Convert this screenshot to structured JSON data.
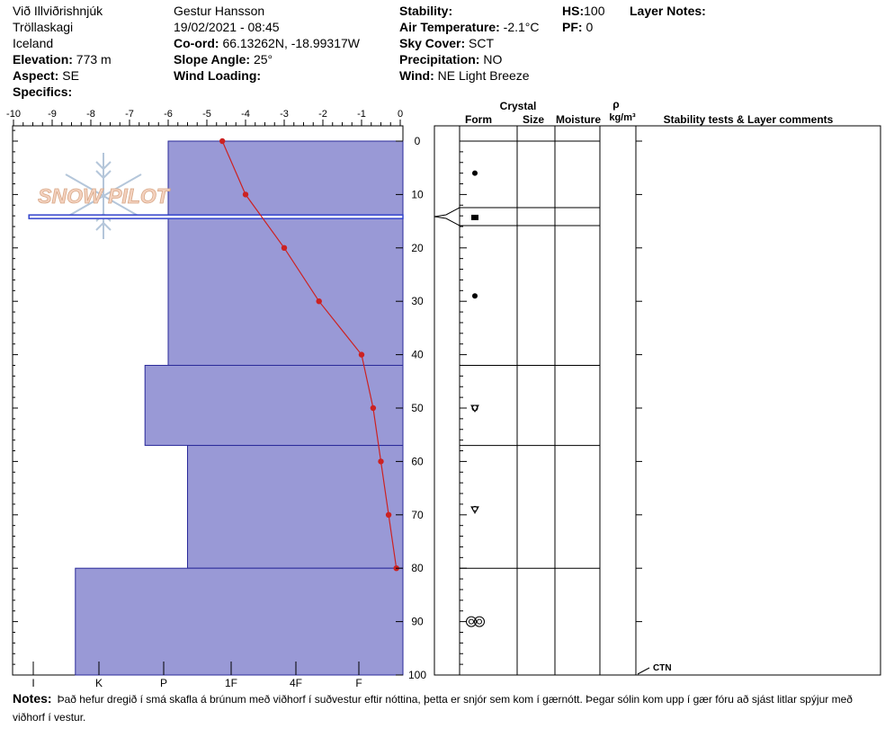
{
  "header": {
    "location": "Við Illviðrishnjúk",
    "region": "Tröllaskagi",
    "country": "Iceland",
    "elevation_label": "Elevation:",
    "elevation": "773 m",
    "aspect_label": "Aspect:",
    "aspect": "SE",
    "specifics_label": "Specifics:",
    "observer": "Gestur Hansson",
    "datetime": "19/02/2021 - 08:45",
    "coord_label": "Co-ord:",
    "coord": "66.13262N, -18.99317W",
    "slope_label": "Slope Angle:",
    "slope": "25°",
    "wind_loading_label": "Wind Loading:",
    "stability_label": "Stability:",
    "air_temp_label": "Air Temperature:",
    "air_temp": "-2.1°C",
    "sky_label": "Sky Cover:",
    "sky": "SCT",
    "precip_label": "Precipitation:",
    "precip": "NO",
    "wind_label": "Wind:",
    "wind": "NE Light Breeze",
    "hs_label": "HS:",
    "hs": "100",
    "pf_label": "PF:",
    "pf": "0",
    "layer_notes_label": "Layer Notes:"
  },
  "watermark": {
    "text": "SNOW PILOT"
  },
  "columns": {
    "crystal": "Crystal",
    "form": "Form",
    "size": "Size",
    "moisture": "Moisture",
    "rho": "ρ",
    "density_unit": "kg/m³",
    "stability": "Stability tests & Layer comments"
  },
  "stability_tests": [
    {
      "label": "CTN",
      "depth": 100
    }
  ],
  "notes": {
    "label": "Notes:",
    "text": "Það hefur dregið í smá skafla á brúnum með viðhorf í suðvestur eftir nóttina, þetta er snjór sem kom í gærnótt. Þegar sólin kom upp í gær fóru að sjást litlar spýjur með viðhorf í vestur."
  },
  "chart_data": {
    "type": "snow-profile",
    "temperature_axis": {
      "ticks": [
        "-10",
        "-9",
        "-8",
        "-7",
        "-6",
        "-5",
        "-4",
        "-3",
        "-2",
        "-1",
        "0"
      ],
      "range": [
        -10,
        0
      ]
    },
    "depth_axis": {
      "ticks": [
        "0",
        "10",
        "20",
        "30",
        "40",
        "50",
        "60",
        "70",
        "80",
        "90",
        "100"
      ],
      "range": [
        0,
        100
      ]
    },
    "hardness_axis": {
      "ticks": [
        "I",
        "K",
        "P",
        "1F",
        "4F",
        "F"
      ]
    },
    "temperature_profile": [
      {
        "depth": 0,
        "temp": -4.6
      },
      {
        "depth": 10,
        "temp": -4.0
      },
      {
        "depth": 20,
        "temp": -3.0
      },
      {
        "depth": 30,
        "temp": -2.1
      },
      {
        "depth": 40,
        "temp": -1.0
      },
      {
        "depth": 50,
        "temp": -0.7
      },
      {
        "depth": 60,
        "temp": -0.5
      },
      {
        "depth": 70,
        "temp": -0.3
      },
      {
        "depth": 80,
        "temp": -0.1
      }
    ],
    "layers": [
      {
        "top": 0,
        "bottom": 42,
        "hardness": -6.0,
        "form": "dot"
      },
      {
        "top": 42,
        "bottom": 57,
        "hardness": -6.6,
        "form": "faceted-round"
      },
      {
        "top": 57,
        "bottom": 80,
        "hardness": -5.5,
        "form": "faceted-round-2"
      },
      {
        "top": 80,
        "bottom": 100,
        "hardness": -8.4,
        "form": "melt-forms"
      }
    ],
    "thin_layer": {
      "top": 14,
      "bottom": 14.6,
      "hardness": -9.6,
      "form": "ice"
    },
    "form_markers": [
      {
        "depth": 6,
        "form": "dot"
      },
      {
        "depth": 14.3,
        "form": "ice"
      },
      {
        "depth": 29,
        "form": "dot"
      },
      {
        "depth": 50,
        "form": "faceted-round"
      },
      {
        "depth": 69,
        "form": "faceted-round-2"
      },
      {
        "depth": 90,
        "form": "melt-forms"
      }
    ],
    "colors": {
      "layer_fill": "#9999d6",
      "layer_stroke": "#2a2a9a",
      "temp_line": "#cc2222",
      "thin_layer": "#3344cc"
    }
  }
}
